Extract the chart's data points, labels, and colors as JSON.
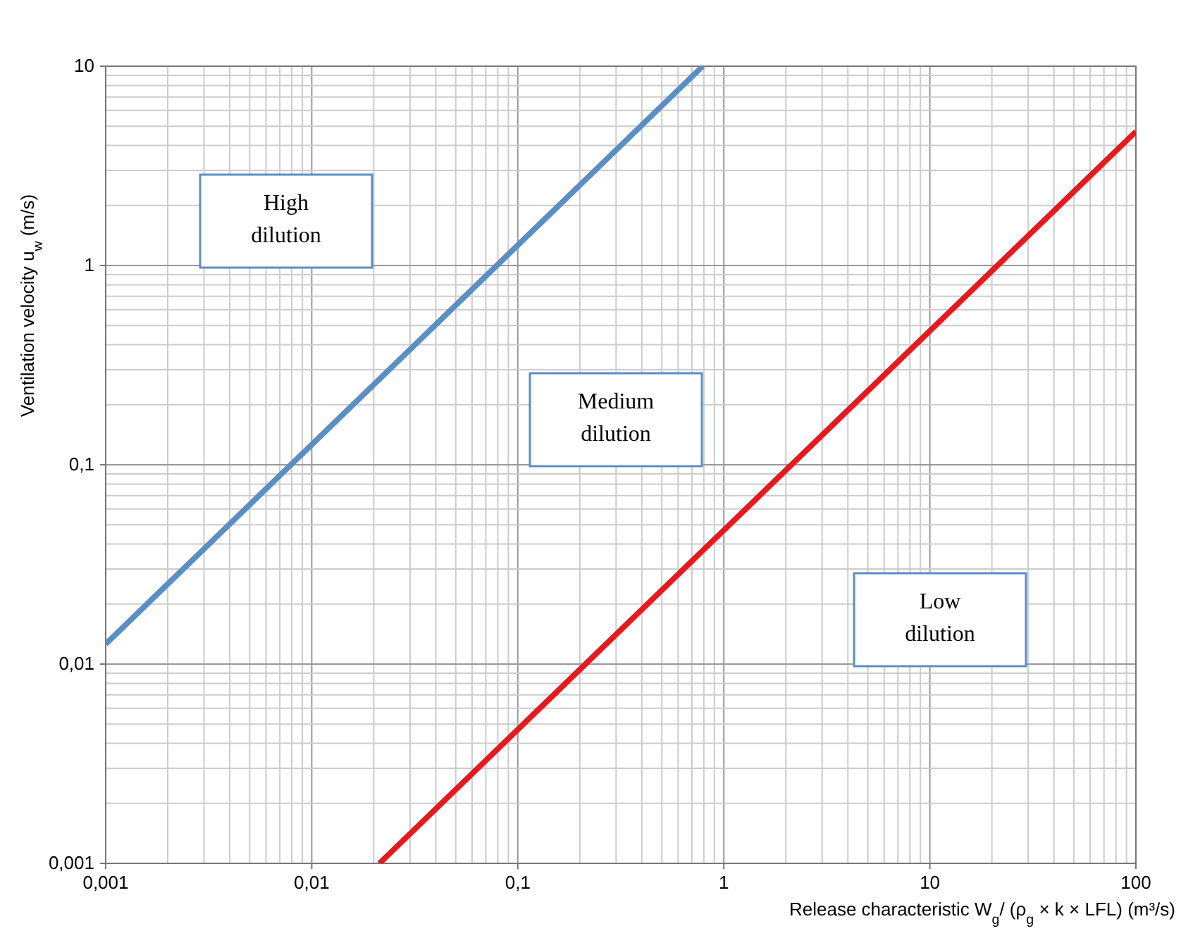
{
  "chart_data": {
    "type": "line",
    "xlabel": "Release characteristic W$_{g}$/ (ρ$_{g}$ × k × LFL)  (m³/s)",
    "ylabel": "Ventilation velocity u$_{w}$  (m/s)",
    "log": "xy",
    "grid": true,
    "line_style": "solid",
    "marker": "none",
    "xlim": [
      0.001,
      100
    ],
    "ylim": [
      0.001,
      10
    ],
    "xticks": [
      {
        "value": 0.001,
        "label": "0,001"
      },
      {
        "value": 0.01,
        "label": "0,01"
      },
      {
        "value": 0.1,
        "label": "0,1"
      },
      1,
      10,
      100
    ],
    "yticks": [
      {
        "value": 0.001,
        "label": "0,001"
      },
      {
        "value": 0.01,
        "label": "0,01"
      },
      {
        "value": 0.1,
        "label": "0,1"
      },
      1,
      10
    ],
    "series": [
      {
        "color": "#5b8ec4",
        "x": [
          0.001,
          0.79
        ],
        "values": [
          0.0126,
          10
        ]
      },
      {
        "color": "#e8191e",
        "x": [
          0.0213,
          100
        ],
        "values": [
          0.001,
          4.7
        ]
      }
    ],
    "annotations": [
      "High dilution",
      "Medium dilution",
      "Low dilution"
    ]
  }
}
